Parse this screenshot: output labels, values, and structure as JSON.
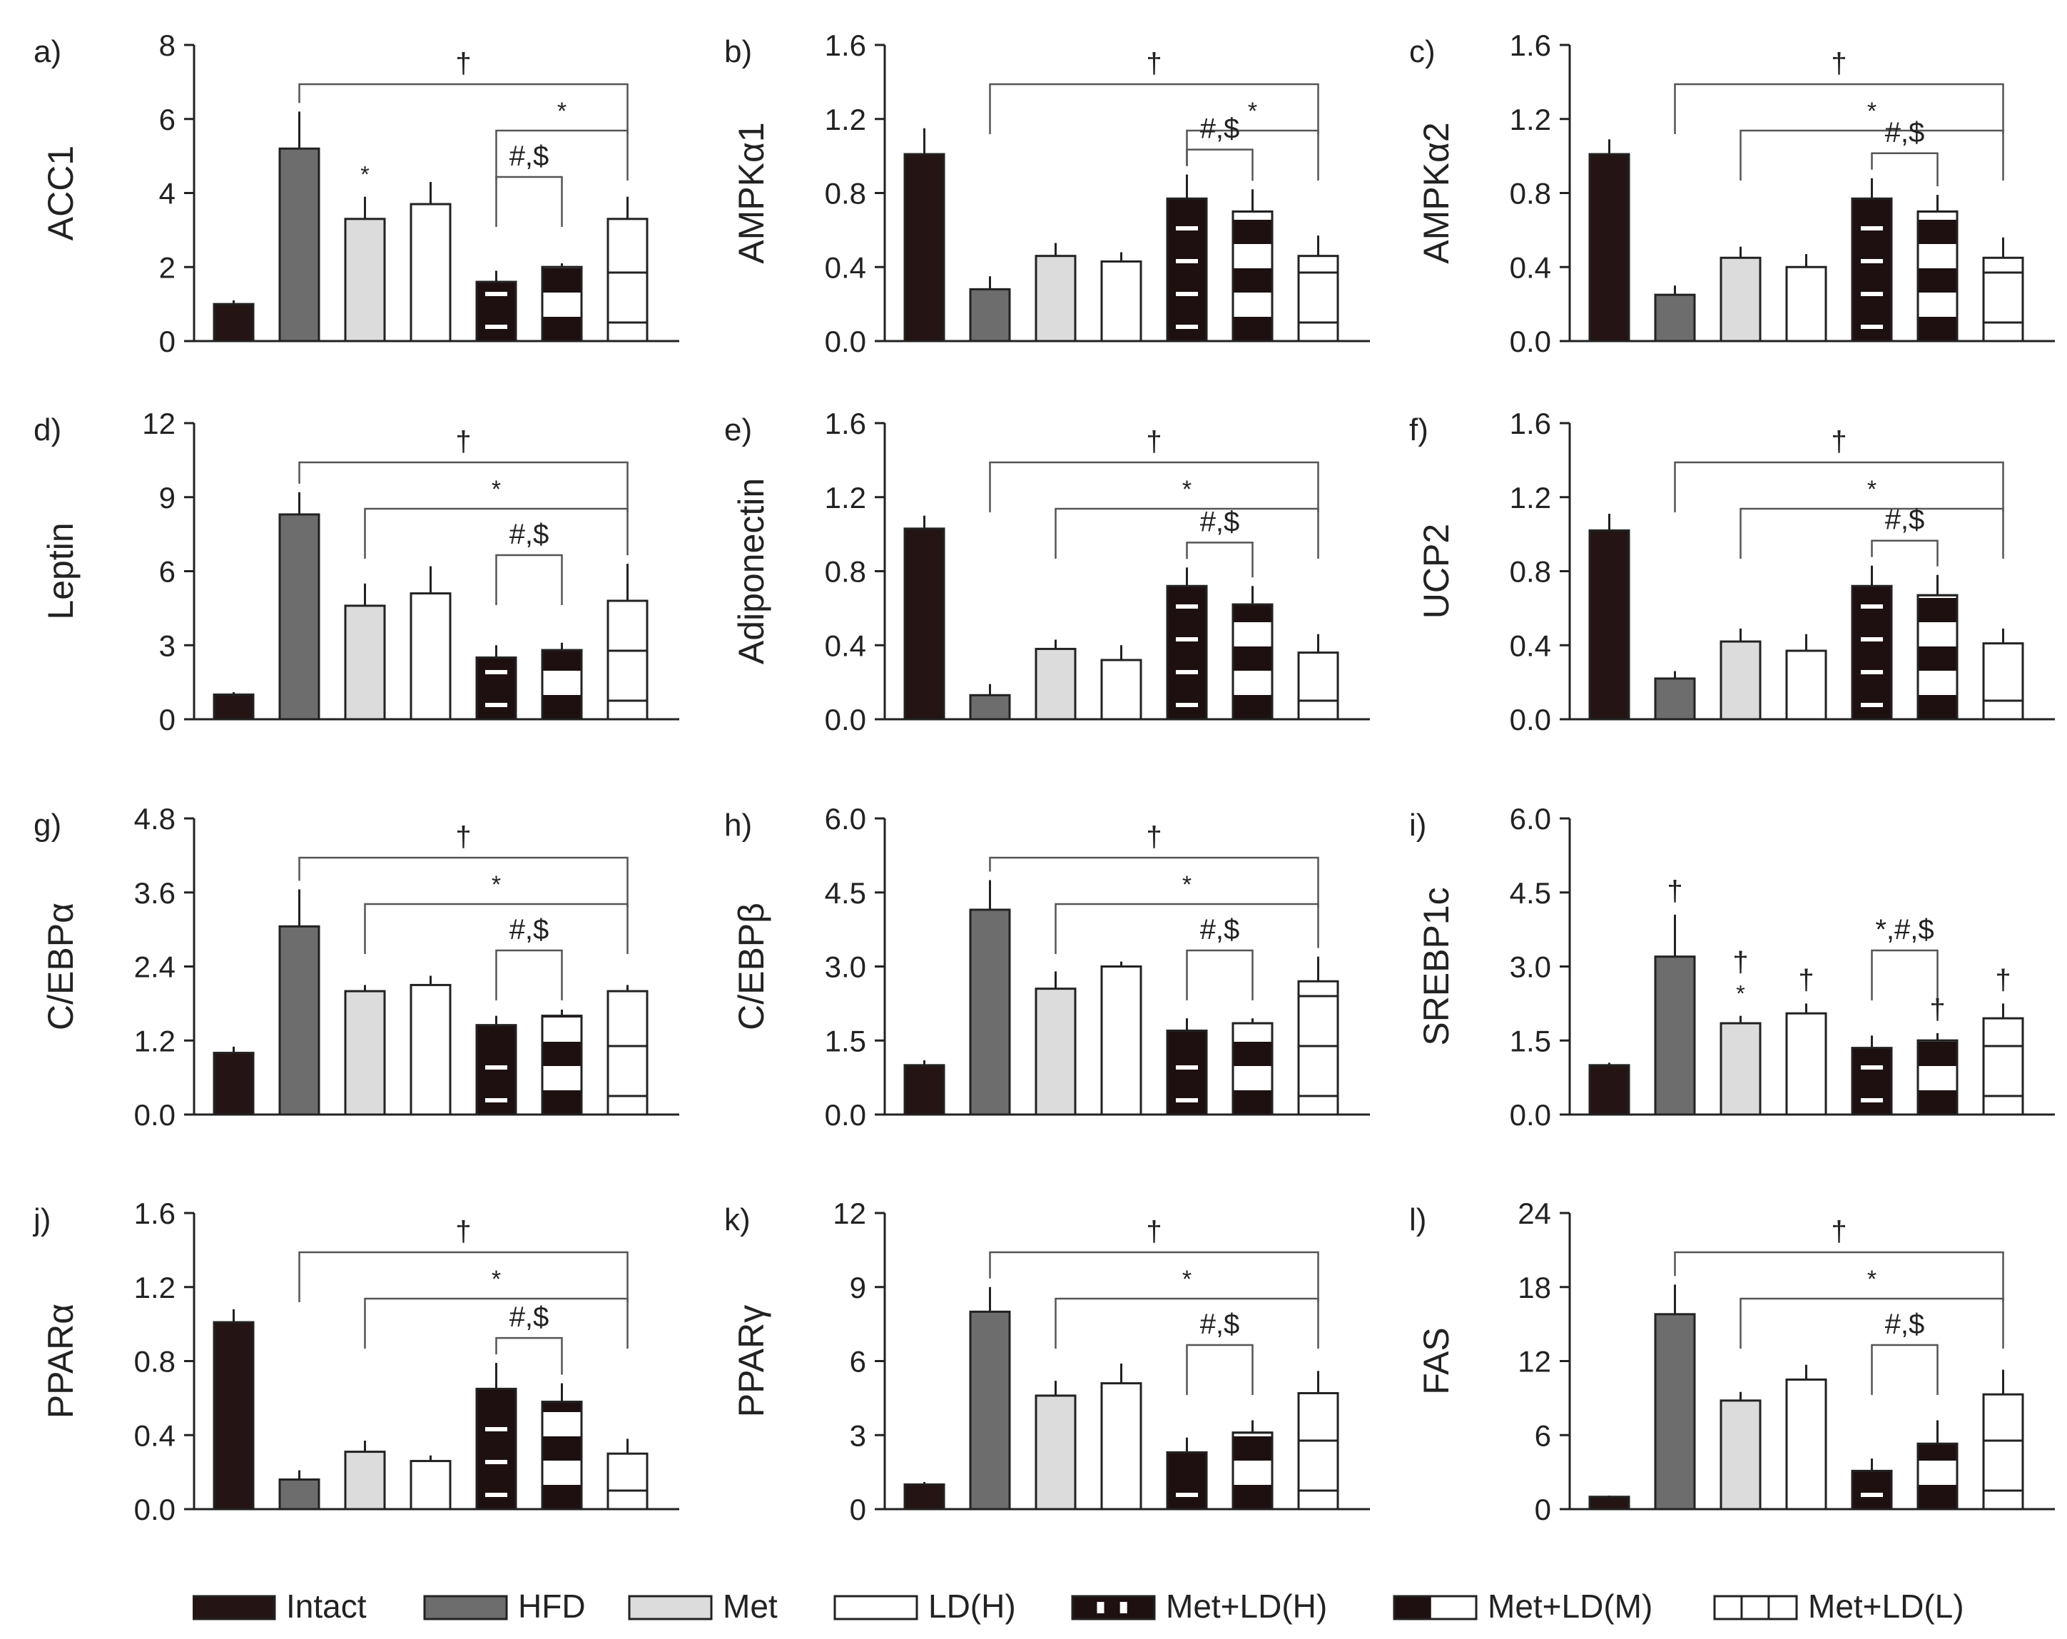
{
  "colors": {
    "intact": "#241414",
    "hfd": "#6d6d6d",
    "met": "#dcdcdc",
    "ld": "#ffffff",
    "dark": "#1e1010",
    "axis": "#222222"
  },
  "groups": [
    "Intact",
    "HFD",
    "Met",
    "LD(H)",
    "Met+LD(H)",
    "Met+LD(M)",
    "Met+LD(L)"
  ],
  "legend": [
    {
      "label": "Intact",
      "style": "intact"
    },
    {
      "label": "HFD",
      "style": "hfd"
    },
    {
      "label": "Met",
      "style": "met"
    },
    {
      "label": "LD(H)",
      "style": "ld"
    },
    {
      "label": "Met+LD(H)",
      "style": "metldh"
    },
    {
      "label": "Met+LD(M)",
      "style": "metldm"
    },
    {
      "label": "Met+LD(L)",
      "style": "metldl"
    }
  ],
  "chart_data": [
    {
      "type": "bar",
      "panel": "a)",
      "ylabel": "ACC1",
      "ylim": [
        0,
        8
      ],
      "yticks": [
        "0",
        "2",
        "4",
        "6",
        "8"
      ],
      "categories": [
        "Intact",
        "HFD",
        "Met",
        "LD(H)",
        "Met+LD(H)",
        "Met+LD(M)",
        "Met+LD(L)"
      ],
      "values": [
        1.0,
        5.2,
        3.3,
        3.7,
        1.6,
        2.0,
        3.3
      ],
      "errors": [
        0.1,
        1.0,
        0.6,
        0.6,
        0.3,
        0.1,
        0.6
      ],
      "brackets": [
        {
          "from": 1,
          "to": 6,
          "label": "†"
        },
        {
          "from": 4,
          "to": 6,
          "label": "*"
        },
        {
          "from": 4,
          "to": 5,
          "label": "#,$"
        }
      ],
      "bar_marks": [
        {
          "bar": 2,
          "label": "*"
        }
      ]
    },
    {
      "type": "bar",
      "panel": "b)",
      "ylabel": "AMPKα1",
      "ylim": [
        0,
        1.6
      ],
      "yticks": [
        "0.0",
        "0.4",
        "0.8",
        "1.2",
        "1.6"
      ],
      "categories": [
        "Intact",
        "HFD",
        "Met",
        "LD(H)",
        "Met+LD(H)",
        "Met+LD(M)",
        "Met+LD(L)"
      ],
      "values": [
        1.01,
        0.28,
        0.46,
        0.43,
        0.77,
        0.7,
        0.46
      ],
      "errors": [
        0.14,
        0.07,
        0.07,
        0.05,
        0.13,
        0.12,
        0.11
      ],
      "brackets": [
        {
          "from": 1,
          "to": 6,
          "label": "†"
        },
        {
          "from": 4,
          "to": 6,
          "label": "*"
        },
        {
          "from": 4,
          "to": 5,
          "label": "#,$"
        }
      ],
      "bar_marks": []
    },
    {
      "type": "bar",
      "panel": "c)",
      "ylabel": "AMPKα2",
      "ylim": [
        0,
        1.6
      ],
      "yticks": [
        "0.0",
        "0.4",
        "0.8",
        "1.2",
        "1.6"
      ],
      "categories": [
        "Intact",
        "HFD",
        "Met",
        "LD(H)",
        "Met+LD(H)",
        "Met+LD(M)",
        "Met+LD(L)"
      ],
      "values": [
        1.01,
        0.25,
        0.45,
        0.4,
        0.77,
        0.7,
        0.45
      ],
      "errors": [
        0.08,
        0.05,
        0.06,
        0.07,
        0.11,
        0.09,
        0.11
      ],
      "brackets": [
        {
          "from": 1,
          "to": 6,
          "label": "†"
        },
        {
          "from": 2,
          "to": 6,
          "label": "*"
        },
        {
          "from": 4,
          "to": 5,
          "label": "#,$"
        }
      ],
      "bar_marks": []
    },
    {
      "type": "bar",
      "panel": "d)",
      "ylabel": "Leptin",
      "ylim": [
        0,
        12
      ],
      "yticks": [
        "0",
        "3",
        "6",
        "9",
        "12"
      ],
      "categories": [
        "Intact",
        "HFD",
        "Met",
        "LD(H)",
        "Met+LD(H)",
        "Met+LD(M)",
        "Met+LD(L)"
      ],
      "values": [
        1.0,
        8.3,
        4.6,
        5.1,
        2.5,
        2.8,
        4.8
      ],
      "errors": [
        0.1,
        0.9,
        0.9,
        1.1,
        0.5,
        0.3,
        1.5
      ],
      "brackets": [
        {
          "from": 1,
          "to": 6,
          "label": "†"
        },
        {
          "from": 2,
          "to": 6,
          "label": "*"
        },
        {
          "from": 4,
          "to": 5,
          "label": "#,$"
        }
      ],
      "bar_marks": []
    },
    {
      "type": "bar",
      "panel": "e)",
      "ylabel": "Adiponectin",
      "ylim": [
        0,
        1.6
      ],
      "yticks": [
        "0.0",
        "0.4",
        "0.8",
        "1.2",
        "1.6"
      ],
      "categories": [
        "Intact",
        "HFD",
        "Met",
        "LD(H)",
        "Met+LD(H)",
        "Met+LD(M)",
        "Met+LD(L)"
      ],
      "values": [
        1.03,
        0.13,
        0.38,
        0.32,
        0.72,
        0.62,
        0.36
      ],
      "errors": [
        0.07,
        0.06,
        0.05,
        0.08,
        0.1,
        0.1,
        0.1
      ],
      "brackets": [
        {
          "from": 1,
          "to": 6,
          "label": "†"
        },
        {
          "from": 2,
          "to": 6,
          "label": "*"
        },
        {
          "from": 4,
          "to": 5,
          "label": "#,$"
        }
      ],
      "bar_marks": []
    },
    {
      "type": "bar",
      "panel": "f)",
      "ylabel": "UCP2",
      "ylim": [
        0,
        1.6
      ],
      "yticks": [
        "0.0",
        "0.4",
        "0.8",
        "1.2",
        "1.6"
      ],
      "categories": [
        "Intact",
        "HFD",
        "Met",
        "LD(H)",
        "Met+LD(H)",
        "Met+LD(M)",
        "Met+LD(L)"
      ],
      "values": [
        1.02,
        0.22,
        0.42,
        0.37,
        0.72,
        0.67,
        0.41
      ],
      "errors": [
        0.09,
        0.04,
        0.07,
        0.09,
        0.11,
        0.11,
        0.08
      ],
      "brackets": [
        {
          "from": 1,
          "to": 6,
          "label": "†"
        },
        {
          "from": 2,
          "to": 6,
          "label": "*"
        },
        {
          "from": 4,
          "to": 5,
          "label": "#,$"
        }
      ],
      "bar_marks": []
    },
    {
      "type": "bar",
      "panel": "g)",
      "ylabel": "C/EBPα",
      "ylim": [
        0,
        4.8
      ],
      "yticks": [
        "0.0",
        "1.2",
        "2.4",
        "3.6",
        "4.8"
      ],
      "categories": [
        "Intact",
        "HFD",
        "Met",
        "LD(H)",
        "Met+LD(H)",
        "Met+LD(M)",
        "Met+LD(L)"
      ],
      "values": [
        1.0,
        3.05,
        2.0,
        2.1,
        1.45,
        1.6,
        2.0
      ],
      "errors": [
        0.1,
        0.6,
        0.1,
        0.15,
        0.15,
        0.1,
        0.1
      ],
      "brackets": [
        {
          "from": 1,
          "to": 6,
          "label": "†"
        },
        {
          "from": 2,
          "to": 6,
          "label": "*"
        },
        {
          "from": 4,
          "to": 5,
          "label": "#,$"
        }
      ],
      "bar_marks": []
    },
    {
      "type": "bar",
      "panel": "h)",
      "ylabel": "C/EBPβ",
      "ylim": [
        0,
        6
      ],
      "yticks": [
        "0.0",
        "1.5",
        "3.0",
        "4.5",
        "6.0"
      ],
      "categories": [
        "Intact",
        "HFD",
        "Met",
        "LD(H)",
        "Met+LD(H)",
        "Met+LD(M)",
        "Met+LD(L)"
      ],
      "values": [
        1.0,
        4.15,
        2.55,
        3.0,
        1.7,
        1.85,
        2.7
      ],
      "errors": [
        0.1,
        0.6,
        0.35,
        0.1,
        0.25,
        0.1,
        0.5
      ],
      "brackets": [
        {
          "from": 1,
          "to": 6,
          "label": "†"
        },
        {
          "from": 2,
          "to": 6,
          "label": "*"
        },
        {
          "from": 4,
          "to": 5,
          "label": "#,$"
        }
      ],
      "bar_marks": []
    },
    {
      "type": "bar",
      "panel": "i)",
      "ylabel": "SREBP1c",
      "ylim": [
        0,
        6
      ],
      "yticks": [
        "0.0",
        "1.5",
        "3.0",
        "4.5",
        "6.0"
      ],
      "categories": [
        "Intact",
        "HFD",
        "Met",
        "LD(H)",
        "Met+LD(H)",
        "Met+LD(M)",
        "Met+LD(L)"
      ],
      "values": [
        1.0,
        3.2,
        1.85,
        2.05,
        1.35,
        1.5,
        1.95
      ],
      "errors": [
        0.05,
        0.85,
        0.15,
        0.2,
        0.25,
        0.15,
        0.3
      ],
      "brackets": [
        {
          "from": 4,
          "to": 5,
          "label": "*,#,$"
        }
      ],
      "bar_marks": [
        {
          "bar": 1,
          "label": "†"
        },
        {
          "bar": 2,
          "label": "*"
        },
        {
          "bar": 2,
          "label": "†"
        },
        {
          "bar": 3,
          "label": "†"
        },
        {
          "bar": 5,
          "label": "†"
        },
        {
          "bar": 6,
          "label": "†"
        }
      ]
    },
    {
      "type": "bar",
      "panel": "j)",
      "ylabel": "PPARα",
      "ylim": [
        0,
        1.6
      ],
      "yticks": [
        "0.0",
        "0.4",
        "0.8",
        "1.2",
        "1.6"
      ],
      "categories": [
        "Intact",
        "HFD",
        "Met",
        "LD(H)",
        "Met+LD(H)",
        "Met+LD(M)",
        "Met+LD(L)"
      ],
      "values": [
        1.01,
        0.16,
        0.31,
        0.26,
        0.65,
        0.58,
        0.3
      ],
      "errors": [
        0.07,
        0.05,
        0.06,
        0.03,
        0.14,
        0.1,
        0.08
      ],
      "brackets": [
        {
          "from": 1,
          "to": 6,
          "label": "†"
        },
        {
          "from": 2,
          "to": 6,
          "label": "*"
        },
        {
          "from": 4,
          "to": 5,
          "label": "#,$"
        }
      ],
      "bar_marks": []
    },
    {
      "type": "bar",
      "panel": "k)",
      "ylabel": "PPARγ",
      "ylim": [
        0,
        12
      ],
      "yticks": [
        "0",
        "3",
        "6",
        "9",
        "12"
      ],
      "categories": [
        "Intact",
        "HFD",
        "Met",
        "LD(H)",
        "Met+LD(H)",
        "Met+LD(M)",
        "Met+LD(L)"
      ],
      "values": [
        1.0,
        8.0,
        4.6,
        5.1,
        2.3,
        3.1,
        4.7
      ],
      "errors": [
        0.1,
        1.0,
        0.6,
        0.8,
        0.6,
        0.5,
        0.9
      ],
      "brackets": [
        {
          "from": 1,
          "to": 6,
          "label": "†"
        },
        {
          "from": 2,
          "to": 6,
          "label": "*"
        },
        {
          "from": 4,
          "to": 5,
          "label": "#,$"
        }
      ],
      "bar_marks": []
    },
    {
      "type": "bar",
      "panel": "l)",
      "ylabel": "FAS",
      "ylim": [
        0,
        24
      ],
      "yticks": [
        "0",
        "6",
        "12",
        "18",
        "24"
      ],
      "categories": [
        "Intact",
        "HFD",
        "Met",
        "LD(H)",
        "Met+LD(H)",
        "Met+LD(M)",
        "Met+LD(L)"
      ],
      "values": [
        1.0,
        15.8,
        8.8,
        10.5,
        3.1,
        5.3,
        9.3
      ],
      "errors": [
        0.1,
        2.4,
        0.7,
        1.2,
        1.0,
        1.9,
        2.0
      ],
      "brackets": [
        {
          "from": 1,
          "to": 6,
          "label": "†"
        },
        {
          "from": 2,
          "to": 6,
          "label": "*"
        },
        {
          "from": 4,
          "to": 5,
          "label": "#,$"
        }
      ],
      "bar_marks": []
    }
  ]
}
